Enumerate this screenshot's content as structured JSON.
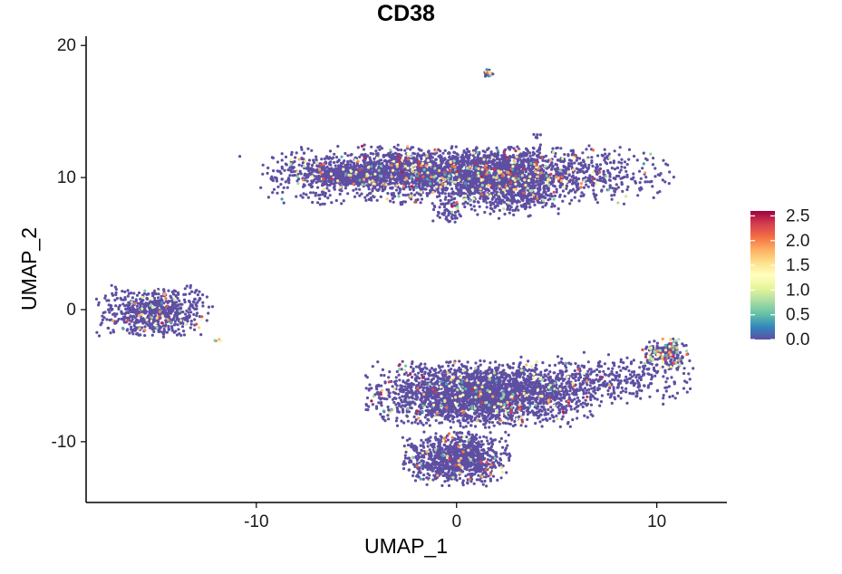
{
  "chart_data": {
    "type": "scatter",
    "title": "CD38",
    "xlabel": "UMAP_1",
    "ylabel": "UMAP_2",
    "xlim": [
      -18.5,
      13.5
    ],
    "ylim": [
      -14.6,
      20.7
    ],
    "x_ticks": [
      -10,
      0,
      10
    ],
    "y_ticks": [
      -10,
      0,
      10,
      20
    ],
    "x_tick_labels": [
      "-10",
      "0",
      "10"
    ],
    "y_tick_labels": [
      "-10",
      "0",
      "10",
      "20"
    ],
    "grid": false,
    "legend": {
      "placement": "right",
      "type": "colorbar",
      "min": 0.0,
      "max": 2.6,
      "breaks": [
        0.0,
        0.5,
        1.0,
        1.5,
        2.0,
        2.5
      ],
      "labels": [
        "0.0",
        "0.5",
        "1.0",
        "1.5",
        "2.0",
        "2.5"
      ],
      "palette": [
        "#5E4FA2",
        "#3288BD",
        "#66C2A5",
        "#ABDDA4",
        "#E6F598",
        "#FFFFBF",
        "#FEE08B",
        "#FDAE61",
        "#F46D43",
        "#D53E4F",
        "#9E0142"
      ]
    },
    "point_color_base": "#5E4FA2",
    "clusters": [
      {
        "cx": 0.5,
        "cy": 10.2,
        "sx": 4.5,
        "sy": 1.0,
        "n": 2400,
        "high_fraction": 0.1
      },
      {
        "cx": -2.5,
        "cy": 10.6,
        "sx": 2.8,
        "sy": 0.6,
        "n": 700,
        "high_fraction": 0.07
      },
      {
        "cx": -5.3,
        "cy": 10.1,
        "sx": 0.9,
        "sy": 0.35,
        "n": 250,
        "high_fraction": 0.04
      },
      {
        "cx": 2.8,
        "cy": 9.6,
        "sx": 1.2,
        "sy": 1.2,
        "n": 700,
        "high_fraction": 0.06
      },
      {
        "cx": -0.5,
        "cy": 7.3,
        "sx": 0.35,
        "sy": 0.5,
        "n": 60,
        "high_fraction": 0.05
      },
      {
        "cx": 1.6,
        "cy": 17.9,
        "sx": 0.12,
        "sy": 0.12,
        "n": 25,
        "high_fraction": 0.3
      },
      {
        "cx": 4.0,
        "cy": 13.1,
        "sx": 0.1,
        "sy": 0.15,
        "n": 6,
        "high_fraction": 0
      },
      {
        "cx": -15.1,
        "cy": -0.1,
        "sx": 1.3,
        "sy": 0.9,
        "n": 650,
        "high_fraction": 0.05
      },
      {
        "cx": -12.0,
        "cy": -2.3,
        "sx": 0.15,
        "sy": 0.1,
        "n": 5,
        "high_fraction": 0.8
      },
      {
        "cx": 1.2,
        "cy": -6.4,
        "sx": 2.5,
        "sy": 1.1,
        "n": 2500,
        "high_fraction": 0.05
      },
      {
        "cx": 6.8,
        "cy": -5.3,
        "sx": 2.5,
        "sy": 0.9,
        "n": 450,
        "high_fraction": 0.03
      },
      {
        "cx": 10.4,
        "cy": -3.3,
        "sx": 0.5,
        "sy": 0.5,
        "n": 200,
        "high_fraction": 0.35
      },
      {
        "cx": 0.0,
        "cy": -11.3,
        "sx": 1.2,
        "sy": 0.9,
        "n": 1000,
        "high_fraction": 0.04
      }
    ]
  }
}
